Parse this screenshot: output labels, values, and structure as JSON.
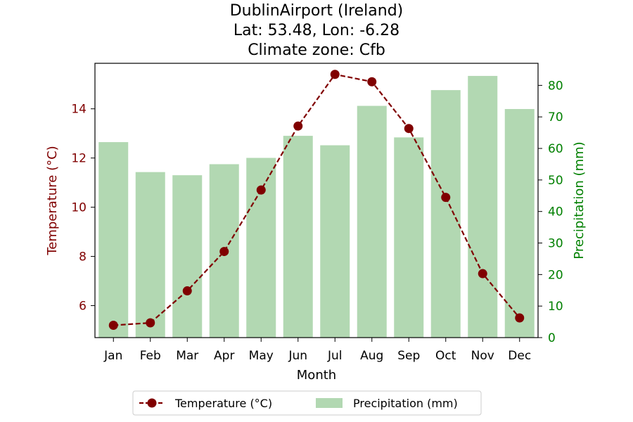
{
  "chart_data": {
    "type": "bar+line",
    "title_lines": [
      "DublinAirport (Ireland)",
      "Lat: 53.48, Lon: -6.28",
      "Climate zone: Cfb"
    ],
    "categories": [
      "Jan",
      "Feb",
      "Mar",
      "Apr",
      "May",
      "Jun",
      "Jul",
      "Aug",
      "Sep",
      "Oct",
      "Nov",
      "Dec"
    ],
    "xlabel": "Month",
    "ylabel_left": "Temperature (°C)",
    "ylabel_right": "Precipitation (mm)",
    "ylim_left": [
      4.7,
      15.85
    ],
    "ylim_right": [
      0,
      87
    ],
    "yticks_left": [
      6,
      8,
      10,
      12,
      14
    ],
    "yticks_right": [
      0,
      10,
      20,
      30,
      40,
      50,
      60,
      70,
      80
    ],
    "series": [
      {
        "name": "Temperature (°C)",
        "kind": "line",
        "axis": "left",
        "color": "#800000",
        "values": [
          5.2,
          5.3,
          6.6,
          8.2,
          10.7,
          13.3,
          15.4,
          15.1,
          13.2,
          10.4,
          7.3,
          5.5
        ]
      },
      {
        "name": "Precipitation (mm)",
        "kind": "bar",
        "axis": "right",
        "color": "#b2d8b2",
        "values": [
          62,
          52.5,
          51.5,
          55,
          57,
          64,
          61,
          73.5,
          63.5,
          78.5,
          83,
          72.5
        ]
      }
    ],
    "axis_colors": {
      "left": "#800000",
      "right": "#008000"
    },
    "legend_position": "bottom-center",
    "grid": false
  }
}
